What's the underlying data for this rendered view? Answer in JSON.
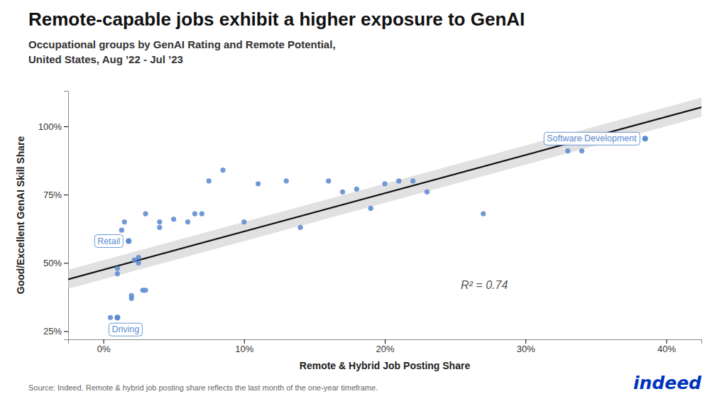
{
  "chart_data": {
    "type": "scatter",
    "title": "Remote-capable jobs exhibit a higher exposure to GenAI",
    "subtitle": "Occupational groups by GenAI Rating and Remote Potential,\nUnited States, Aug ’22 - Jul ’23",
    "xlabel": "Remote & Hybrid Job Posting Share",
    "ylabel": "Good/Excellent GenAI Skill Share",
    "source": "Source: Indeed. Remote & hybrid job posting share reflects the last month of the one-year timeframe.",
    "logo": {
      "text": "indeed",
      "color": "#0033bb"
    },
    "xlim": [
      -0.025,
      0.425
    ],
    "ylim": [
      0.22,
      1.13
    ],
    "xticks": [
      {
        "value": 0.0,
        "label": "0%"
      },
      {
        "value": 0.1,
        "label": "10%"
      },
      {
        "value": 0.2,
        "label": "20%"
      },
      {
        "value": 0.3,
        "label": "30%"
      },
      {
        "value": 0.4,
        "label": "40%"
      }
    ],
    "yticks": [
      {
        "value": 0.25,
        "label": "25%"
      },
      {
        "value": 0.5,
        "label": "50%"
      },
      {
        "value": 0.75,
        "label": "75%"
      },
      {
        "value": 1.0,
        "label": "100%"
      }
    ],
    "grid": false,
    "series": [
      {
        "type": "scatter",
        "color": "#5B8BD0",
        "marker": "circle",
        "x": [
          0.005,
          0.01,
          0.01,
          0.013,
          0.015,
          0.018,
          0.02,
          0.02,
          0.022,
          0.025,
          0.025,
          0.028,
          0.03,
          0.03,
          0.04,
          0.04,
          0.05,
          0.06,
          0.065,
          0.07,
          0.075,
          0.085,
          0.1,
          0.11,
          0.13,
          0.14,
          0.16,
          0.17,
          0.18,
          0.19,
          0.2,
          0.21,
          0.22,
          0.23,
          0.27,
          0.33,
          0.34,
          0.385
        ],
        "values": [
          0.3,
          0.48,
          0.46,
          0.62,
          0.65,
          0.58,
          0.37,
          0.38,
          0.51,
          0.5,
          0.52,
          0.4,
          0.4,
          0.68,
          0.65,
          0.63,
          0.66,
          0.65,
          0.68,
          0.68,
          0.8,
          0.84,
          0.65,
          0.79,
          0.8,
          0.63,
          0.8,
          0.76,
          0.77,
          0.7,
          0.79,
          0.8,
          0.8,
          0.76,
          0.68,
          0.91,
          0.91,
          0.955
        ]
      },
      {
        "type": "line",
        "color": "#111111",
        "line_style": "solid",
        "x": [
          -0.025,
          0.425
        ],
        "values": [
          0.44,
          1.07
        ]
      },
      {
        "type": "area",
        "color": "#c8c8c8",
        "x": [
          -0.025,
          0.425
        ],
        "lower": [
          0.405,
          1.035
        ],
        "upper": [
          0.475,
          1.105
        ]
      }
    ],
    "labeled_points": [
      {
        "text": "Driving",
        "x": 0.01,
        "y": 0.3
      },
      {
        "text": "Retail",
        "x": 0.018,
        "y": 0.58
      },
      {
        "text": "Software Development",
        "x": 0.385,
        "y": 0.955
      }
    ],
    "annotations": [
      {
        "text": "R² = 0.74"
      }
    ]
  }
}
